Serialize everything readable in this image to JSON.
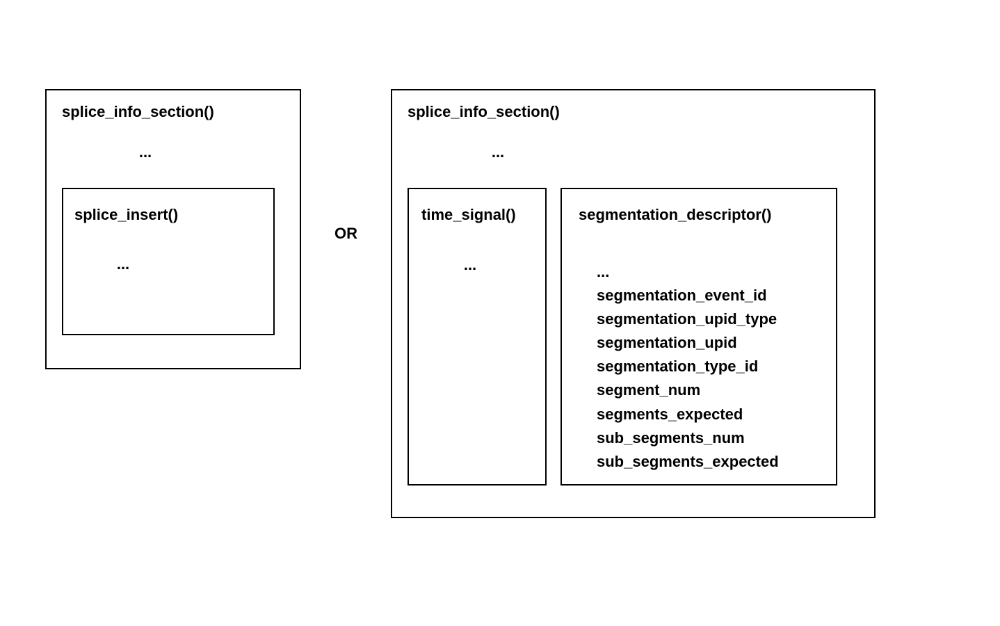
{
  "diagram": {
    "type": "box-diagram",
    "background_color": "#ffffff",
    "border_color": "#000000",
    "border_width": 2,
    "text_color": "#000000",
    "font_weight": "bold",
    "font_size": 22
  },
  "left_section": {
    "title": "splice_info_section()",
    "ellipsis": "...",
    "inner_box": {
      "title": "splice_insert()",
      "ellipsis": "..."
    }
  },
  "connector": {
    "label": "OR"
  },
  "right_section": {
    "title": "splice_info_section()",
    "ellipsis": "...",
    "time_signal": {
      "title": "time_signal()",
      "ellipsis": "..."
    },
    "seg_descriptor": {
      "title": "segmentation_descriptor()",
      "ellipsis": "...",
      "fields": [
        "segmentation_event_id",
        "segmentation_upid_type",
        "segmentation_upid",
        "segmentation_type_id",
        "segment_num",
        "segments_expected",
        "sub_segments_num",
        "sub_segments_expected"
      ]
    }
  }
}
